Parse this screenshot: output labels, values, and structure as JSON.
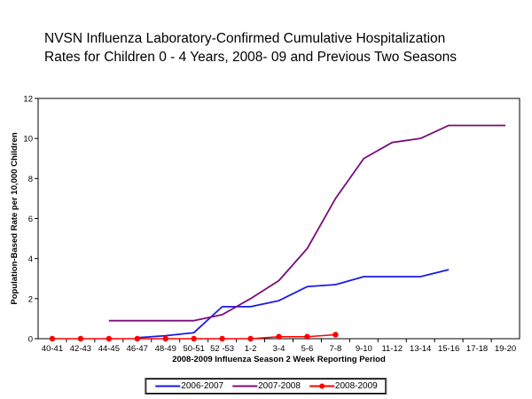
{
  "header": {
    "title_line1": "NVSN Influenza Laboratory-Confirmed Cumulative Hospitalization",
    "title_line2": "Rates for Children 0 - 4 Years, 2008- 09 and Previous Two Seasons"
  },
  "chart_data": {
    "type": "line",
    "title": "NVSN Influenza Laboratory-Confirmed Cumulative Hospitalization Rates for Children 0 - 4 Years, 2008- 09 and Previous Two Seasons",
    "xlabel": "2008-2009 Influenza Season 2 Week Reporting Period",
    "ylabel": "Population-Based Rate per 10,000 Children",
    "ylim": [
      0,
      12
    ],
    "yticks": [
      0,
      2,
      4,
      6,
      8,
      10,
      12
    ],
    "grid": false,
    "legend_position": "bottom",
    "categories": [
      "40-41",
      "42-43",
      "44-45",
      "46-47",
      "48-49",
      "50-51",
      "52 -53",
      "1-2",
      "3-4",
      "5-6",
      "7-8",
      "9-10",
      "11-12",
      "13-14",
      "15-16",
      "17-18",
      "19-20"
    ],
    "series": [
      {
        "name": "2006-2007",
        "color": "#1a1ae8",
        "marker": "none",
        "values": [
          null,
          null,
          null,
          0.05,
          0.15,
          0.3,
          1.6,
          1.6,
          1.9,
          2.6,
          2.7,
          3.1,
          3.1,
          3.1,
          3.45,
          null,
          null
        ]
      },
      {
        "name": "2007-2008",
        "color": "#7a0d7a",
        "marker": "none",
        "values": [
          null,
          null,
          0.9,
          0.9,
          0.9,
          0.9,
          1.2,
          2.0,
          2.9,
          4.5,
          7.0,
          9.0,
          9.8,
          10.0,
          10.65,
          10.65,
          10.65
        ]
      },
      {
        "name": "2008-2009",
        "color": "#fe0000",
        "marker": "circle",
        "values": [
          0,
          0,
          0,
          0,
          0,
          0,
          0,
          0,
          0.1,
          0.1,
          0.2,
          null,
          null,
          null,
          null,
          null,
          null
        ]
      }
    ]
  }
}
